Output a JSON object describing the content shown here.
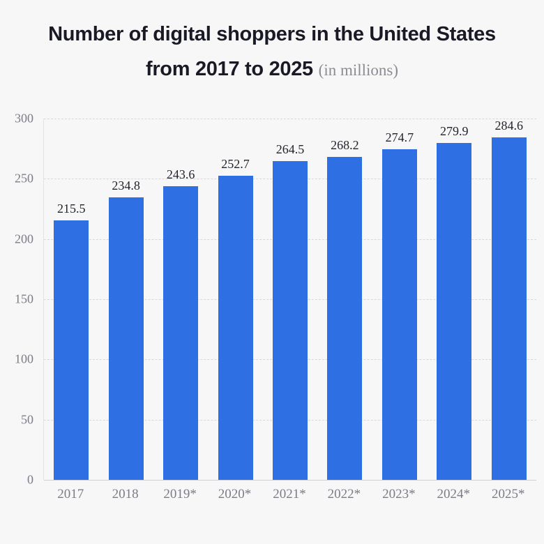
{
  "title": {
    "line1": "Number of digital shoppers in the United States",
    "line2_bold": "from 2017 to 2025",
    "note": "(in millions)"
  },
  "colors": {
    "background": "#f7f7f8",
    "bar": "#2e70e3",
    "title_text": "#1a1a26",
    "note_text": "#8b8b94",
    "axis_text": "#7c7c86",
    "value_text": "#23232b",
    "gridline": "#d8d8dc"
  },
  "chart_data": {
    "type": "bar",
    "title": "Number of digital shoppers in the United States from 2017 to 2025 (in millions)",
    "categories": [
      "2017",
      "2018",
      "2019*",
      "2020*",
      "2021*",
      "2022*",
      "2023*",
      "2024*",
      "2025*"
    ],
    "values": [
      215.5,
      234.8,
      243.6,
      252.7,
      264.5,
      268.2,
      274.7,
      279.9,
      284.6
    ],
    "value_labels": [
      "215.5",
      "234.8",
      "243.6",
      "252.7",
      "264.5",
      "268.2",
      "274.7",
      "279.9",
      "284.6"
    ],
    "xlabel": "",
    "ylabel": "",
    "ylim": [
      0,
      300
    ],
    "y_ticks": [
      0,
      50,
      100,
      150,
      200,
      250,
      300
    ],
    "grid": "horizontal-dashed",
    "legend": "none",
    "bar_color": "#2e70e3"
  }
}
